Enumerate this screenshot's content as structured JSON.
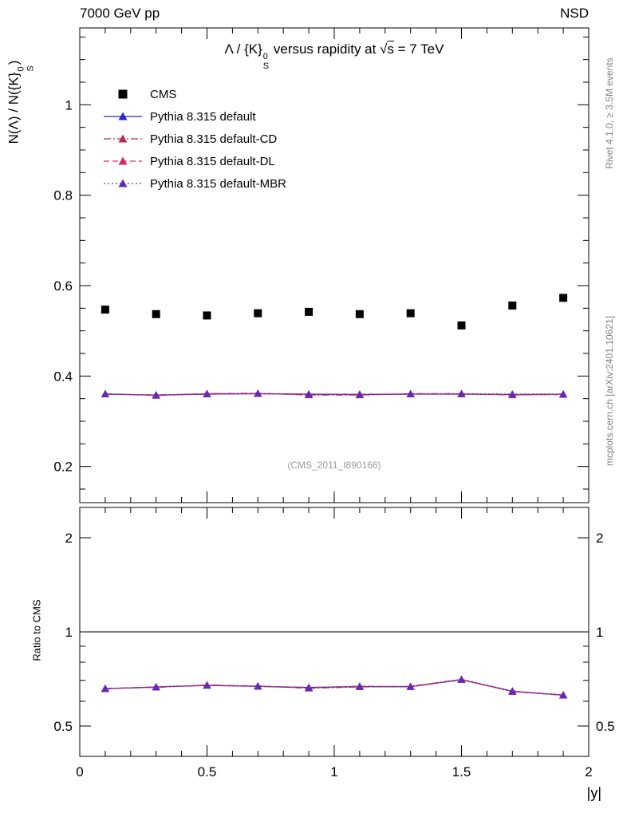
{
  "header": {
    "left": "7000 GeV pp",
    "right": "NSD"
  },
  "side_notes": {
    "top_right": "Rivet 4.1.0, ≥ 3.5M events",
    "bottom_right": "mcplots.cern.ch [arXiv:2401.10621]"
  },
  "title": {
    "pre": "Λ / {K}",
    "sup": "0",
    "sub": "S",
    "mid": " versus rapidity at ",
    "sqrt": "√",
    "sqrt_arg": "s",
    "post": " = 7 TeV"
  },
  "axis": {
    "ylabel": {
      "pre": "N(Λ) / N({K}",
      "sup": "0",
      "sub": "S",
      "post": ")"
    },
    "ratio_label": "Ratio to CMS",
    "xlabel": "|y|"
  },
  "watermark": "(CMS_2011_I890166)",
  "chart_data": {
    "type": "scatter",
    "title": "Λ / {K}_S^0 versus rapidity at √s = 7 TeV",
    "xlabel": "|y|",
    "ylabel": "N(Λ) / N({K}_S^0)",
    "ratio_ylabel": "Ratio to CMS",
    "legend_position": "top-left",
    "grid": false,
    "x": [
      0.1,
      0.3,
      0.5,
      0.7,
      0.9,
      1.1,
      1.3,
      1.5,
      1.7,
      1.9
    ],
    "xlim": [
      0,
      2
    ],
    "xticks": [
      0,
      0.5,
      1,
      1.5,
      2
    ],
    "xtick_labels": [
      "0",
      "0.5",
      "1",
      "1.5",
      "2"
    ],
    "x_minor_step": 0.1,
    "main": {
      "scale": "linear",
      "ylim": [
        0.12,
        1.17
      ],
      "yticks": [
        0.2,
        0.4,
        0.6,
        0.8,
        1
      ],
      "ytick_labels": [
        "0.2",
        "0.4",
        "0.6",
        "0.8",
        "1"
      ],
      "minor_step": 0.05
    },
    "ratio": {
      "scale": "log",
      "ylim": [
        0.4,
        2.5
      ],
      "yticks": [
        0.5,
        1,
        2
      ],
      "ytick_labels": [
        "0.5",
        "1",
        "2"
      ],
      "minor_ticks": [
        0.4,
        0.6,
        0.7,
        0.8,
        0.9
      ],
      "ref_line": 1
    },
    "cms": {
      "name": "CMS",
      "marker": "square",
      "color": "#000000",
      "values": [
        0.547,
        0.537,
        0.534,
        0.539,
        0.542,
        0.537,
        0.539,
        0.512,
        0.556,
        0.573
      ]
    },
    "series": [
      {
        "name": "Pythia 8.315 default",
        "color": "#2929c8",
        "dash": "solid",
        "marker": "triangle",
        "values": [
          0.36,
          0.358,
          0.36,
          0.361,
          0.36,
          0.359,
          0.36,
          0.36,
          0.359,
          0.36
        ]
      },
      {
        "name": "Pythia 8.315 default-CD",
        "color": "#b22d52",
        "dash": "dashdot",
        "marker": "triangle",
        "values": [
          0.361,
          0.357,
          0.361,
          0.362,
          0.358,
          0.358,
          0.361,
          0.361,
          0.358,
          0.36
        ]
      },
      {
        "name": "Pythia 8.315 default-DL",
        "color": "#cf2a68",
        "dash": "dashed",
        "marker": "triangle",
        "values": [
          0.36,
          0.358,
          0.361,
          0.361,
          0.36,
          0.36,
          0.36,
          0.36,
          0.359,
          0.359
        ]
      },
      {
        "name": "Pythia 8.315 default-MBR",
        "color": "#5f2bb8",
        "dash": "dotted",
        "marker": "triangle",
        "values": [
          0.36,
          0.358,
          0.36,
          0.361,
          0.359,
          0.359,
          0.36,
          0.361,
          0.36,
          0.36
        ]
      }
    ]
  }
}
